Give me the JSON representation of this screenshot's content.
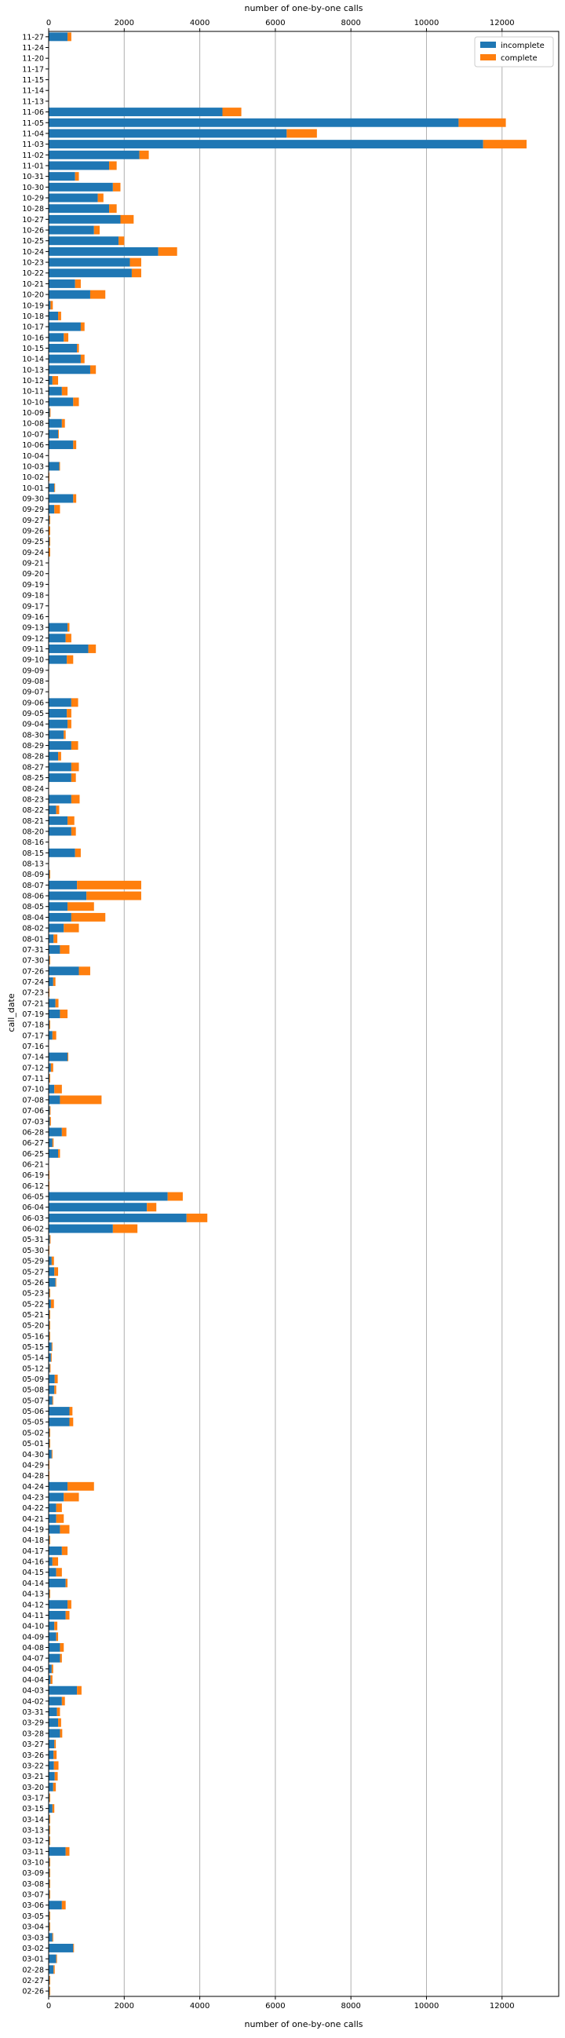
{
  "chart_data": {
    "type": "bar",
    "orientation": "horizontal",
    "stacked": true,
    "title": "",
    "xlabel": "number of one-by-one calls",
    "xlabel_top": "number of one-by-one calls",
    "ylabel": "call_date",
    "xlim": [
      0,
      13500
    ],
    "xticks": [
      0,
      2000,
      4000,
      6000,
      8000,
      10000,
      12000
    ],
    "grid": "vertical",
    "legend_position": "top-right",
    "colors": {
      "incomplete": "#1f77b4",
      "complete": "#ff7f0e"
    },
    "categories": [
      "11-27",
      "11-24",
      "11-20",
      "11-17",
      "11-15",
      "11-14",
      "11-13",
      "11-06",
      "11-05",
      "11-04",
      "11-03",
      "11-02",
      "11-01",
      "10-31",
      "10-30",
      "10-29",
      "10-28",
      "10-27",
      "10-26",
      "10-25",
      "10-24",
      "10-23",
      "10-22",
      "10-21",
      "10-20",
      "10-19",
      "10-18",
      "10-17",
      "10-16",
      "10-15",
      "10-14",
      "10-13",
      "10-12",
      "10-11",
      "10-10",
      "10-09",
      "10-08",
      "10-07",
      "10-06",
      "10-04",
      "10-03",
      "10-02",
      "10-01",
      "09-30",
      "09-29",
      "09-27",
      "09-26",
      "09-25",
      "09-24",
      "09-21",
      "09-20",
      "09-19",
      "09-18",
      "09-17",
      "09-16",
      "09-13",
      "09-12",
      "09-11",
      "09-10",
      "09-09",
      "09-08",
      "09-07",
      "09-06",
      "09-05",
      "09-04",
      "08-30",
      "08-29",
      "08-28",
      "08-27",
      "08-25",
      "08-24",
      "08-23",
      "08-22",
      "08-21",
      "08-20",
      "08-16",
      "08-15",
      "08-13",
      "08-09",
      "08-07",
      "08-06",
      "08-05",
      "08-04",
      "08-02",
      "08-01",
      "07-31",
      "07-30",
      "07-26",
      "07-24",
      "07-23",
      "07-21",
      "07-19",
      "07-18",
      "07-17",
      "07-16",
      "07-14",
      "07-12",
      "07-11",
      "07-10",
      "07-08",
      "07-06",
      "07-03",
      "06-28",
      "06-27",
      "06-25",
      "06-21",
      "06-19",
      "06-12",
      "06-05",
      "06-04",
      "06-03",
      "06-02",
      "05-31",
      "05-30",
      "05-29",
      "05-27",
      "05-26",
      "05-23",
      "05-22",
      "05-21",
      "05-20",
      "05-16",
      "05-15",
      "05-14",
      "05-12",
      "05-09",
      "05-08",
      "05-07",
      "05-06",
      "05-05",
      "05-02",
      "05-01",
      "04-30",
      "04-29",
      "04-28",
      "04-24",
      "04-23",
      "04-22",
      "04-21",
      "04-19",
      "04-18",
      "04-17",
      "04-16",
      "04-15",
      "04-14",
      "04-13",
      "04-12",
      "04-11",
      "04-10",
      "04-09",
      "04-08",
      "04-07",
      "04-05",
      "04-04",
      "04-03",
      "04-02",
      "03-31",
      "03-29",
      "03-28",
      "03-27",
      "03-26",
      "03-22",
      "03-21",
      "03-20",
      "03-17",
      "03-15",
      "03-14",
      "03-13",
      "03-12",
      "03-11",
      "03-10",
      "03-09",
      "03-08",
      "03-07",
      "03-06",
      "03-05",
      "03-04",
      "03-03",
      "03-02",
      "03-01",
      "02-28",
      "02-27",
      "02-26"
    ],
    "series": [
      {
        "name": "incomplete",
        "values": [
          500,
          0,
          0,
          0,
          0,
          0,
          0,
          4600,
          10850,
          6300,
          11500,
          2400,
          1600,
          700,
          1700,
          1300,
          1600,
          1900,
          1200,
          1850,
          2900,
          2150,
          2200,
          700,
          1100,
          50,
          250,
          850,
          400,
          750,
          850,
          1100,
          100,
          350,
          650,
          30,
          350,
          250,
          650,
          0,
          280,
          10,
          150,
          650,
          150,
          20,
          10,
          20,
          10,
          0,
          0,
          0,
          0,
          0,
          0,
          500,
          450,
          1050,
          480,
          0,
          0,
          0,
          600,
          480,
          500,
          400,
          600,
          250,
          600,
          600,
          0,
          600,
          200,
          500,
          600,
          0,
          700,
          0,
          20,
          750,
          1000,
          500,
          600,
          400,
          130,
          300,
          20,
          800,
          120,
          10,
          180,
          300,
          20,
          100,
          0,
          500,
          60,
          20,
          150,
          300,
          30,
          30,
          350,
          100,
          250,
          0,
          10,
          10,
          3150,
          2600,
          3650,
          1700,
          30,
          10,
          80,
          150,
          180,
          20,
          60,
          20,
          20,
          20,
          80,
          60,
          30,
          160,
          150,
          100,
          550,
          550,
          20,
          20,
          80,
          10,
          10,
          500,
          400,
          200,
          200,
          300,
          20,
          350,
          100,
          200,
          450,
          20,
          500,
          450,
          150,
          200,
          300,
          300,
          80,
          50,
          750,
          350,
          220,
          250,
          300,
          150,
          130,
          140,
          160,
          120,
          20,
          100,
          20,
          20,
          20,
          450,
          20,
          20,
          20,
          20,
          350,
          20,
          20,
          100,
          650,
          200,
          130,
          20,
          20
        ]
      },
      {
        "name": "complete",
        "values": [
          100,
          0,
          0,
          0,
          0,
          0,
          0,
          500,
          1250,
          800,
          1150,
          250,
          200,
          100,
          200,
          150,
          200,
          350,
          150,
          150,
          500,
          300,
          250,
          150,
          400,
          60,
          80,
          100,
          120,
          50,
          100,
          150,
          150,
          150,
          150,
          20,
          80,
          20,
          80,
          0,
          20,
          10,
          20,
          80,
          150,
          20,
          30,
          20,
          30,
          0,
          0,
          0,
          0,
          0,
          0,
          50,
          150,
          200,
          170,
          0,
          0,
          0,
          180,
          120,
          100,
          50,
          180,
          80,
          200,
          120,
          0,
          220,
          80,
          180,
          120,
          0,
          150,
          0,
          20,
          1700,
          1450,
          700,
          900,
          400,
          100,
          250,
          20,
          300,
          60,
          10,
          80,
          200,
          20,
          100,
          0,
          20,
          60,
          20,
          200,
          1100,
          20,
          30,
          120,
          30,
          50,
          0,
          10,
          10,
          400,
          250,
          550,
          650,
          20,
          10,
          60,
          100,
          20,
          20,
          80,
          20,
          20,
          20,
          20,
          20,
          20,
          80,
          50,
          20,
          80,
          100,
          20,
          20,
          20,
          10,
          10,
          700,
          400,
          150,
          200,
          250,
          20,
          150,
          150,
          150,
          50,
          20,
          100,
          100,
          80,
          50,
          100,
          50,
          40,
          50,
          120,
          80,
          80,
          80,
          60,
          40,
          80,
          120,
          80,
          70,
          20,
          50,
          20,
          20,
          20,
          100,
          20,
          20,
          20,
          20,
          100,
          20,
          20,
          20,
          20,
          20,
          30,
          20,
          20
        ]
      }
    ]
  }
}
